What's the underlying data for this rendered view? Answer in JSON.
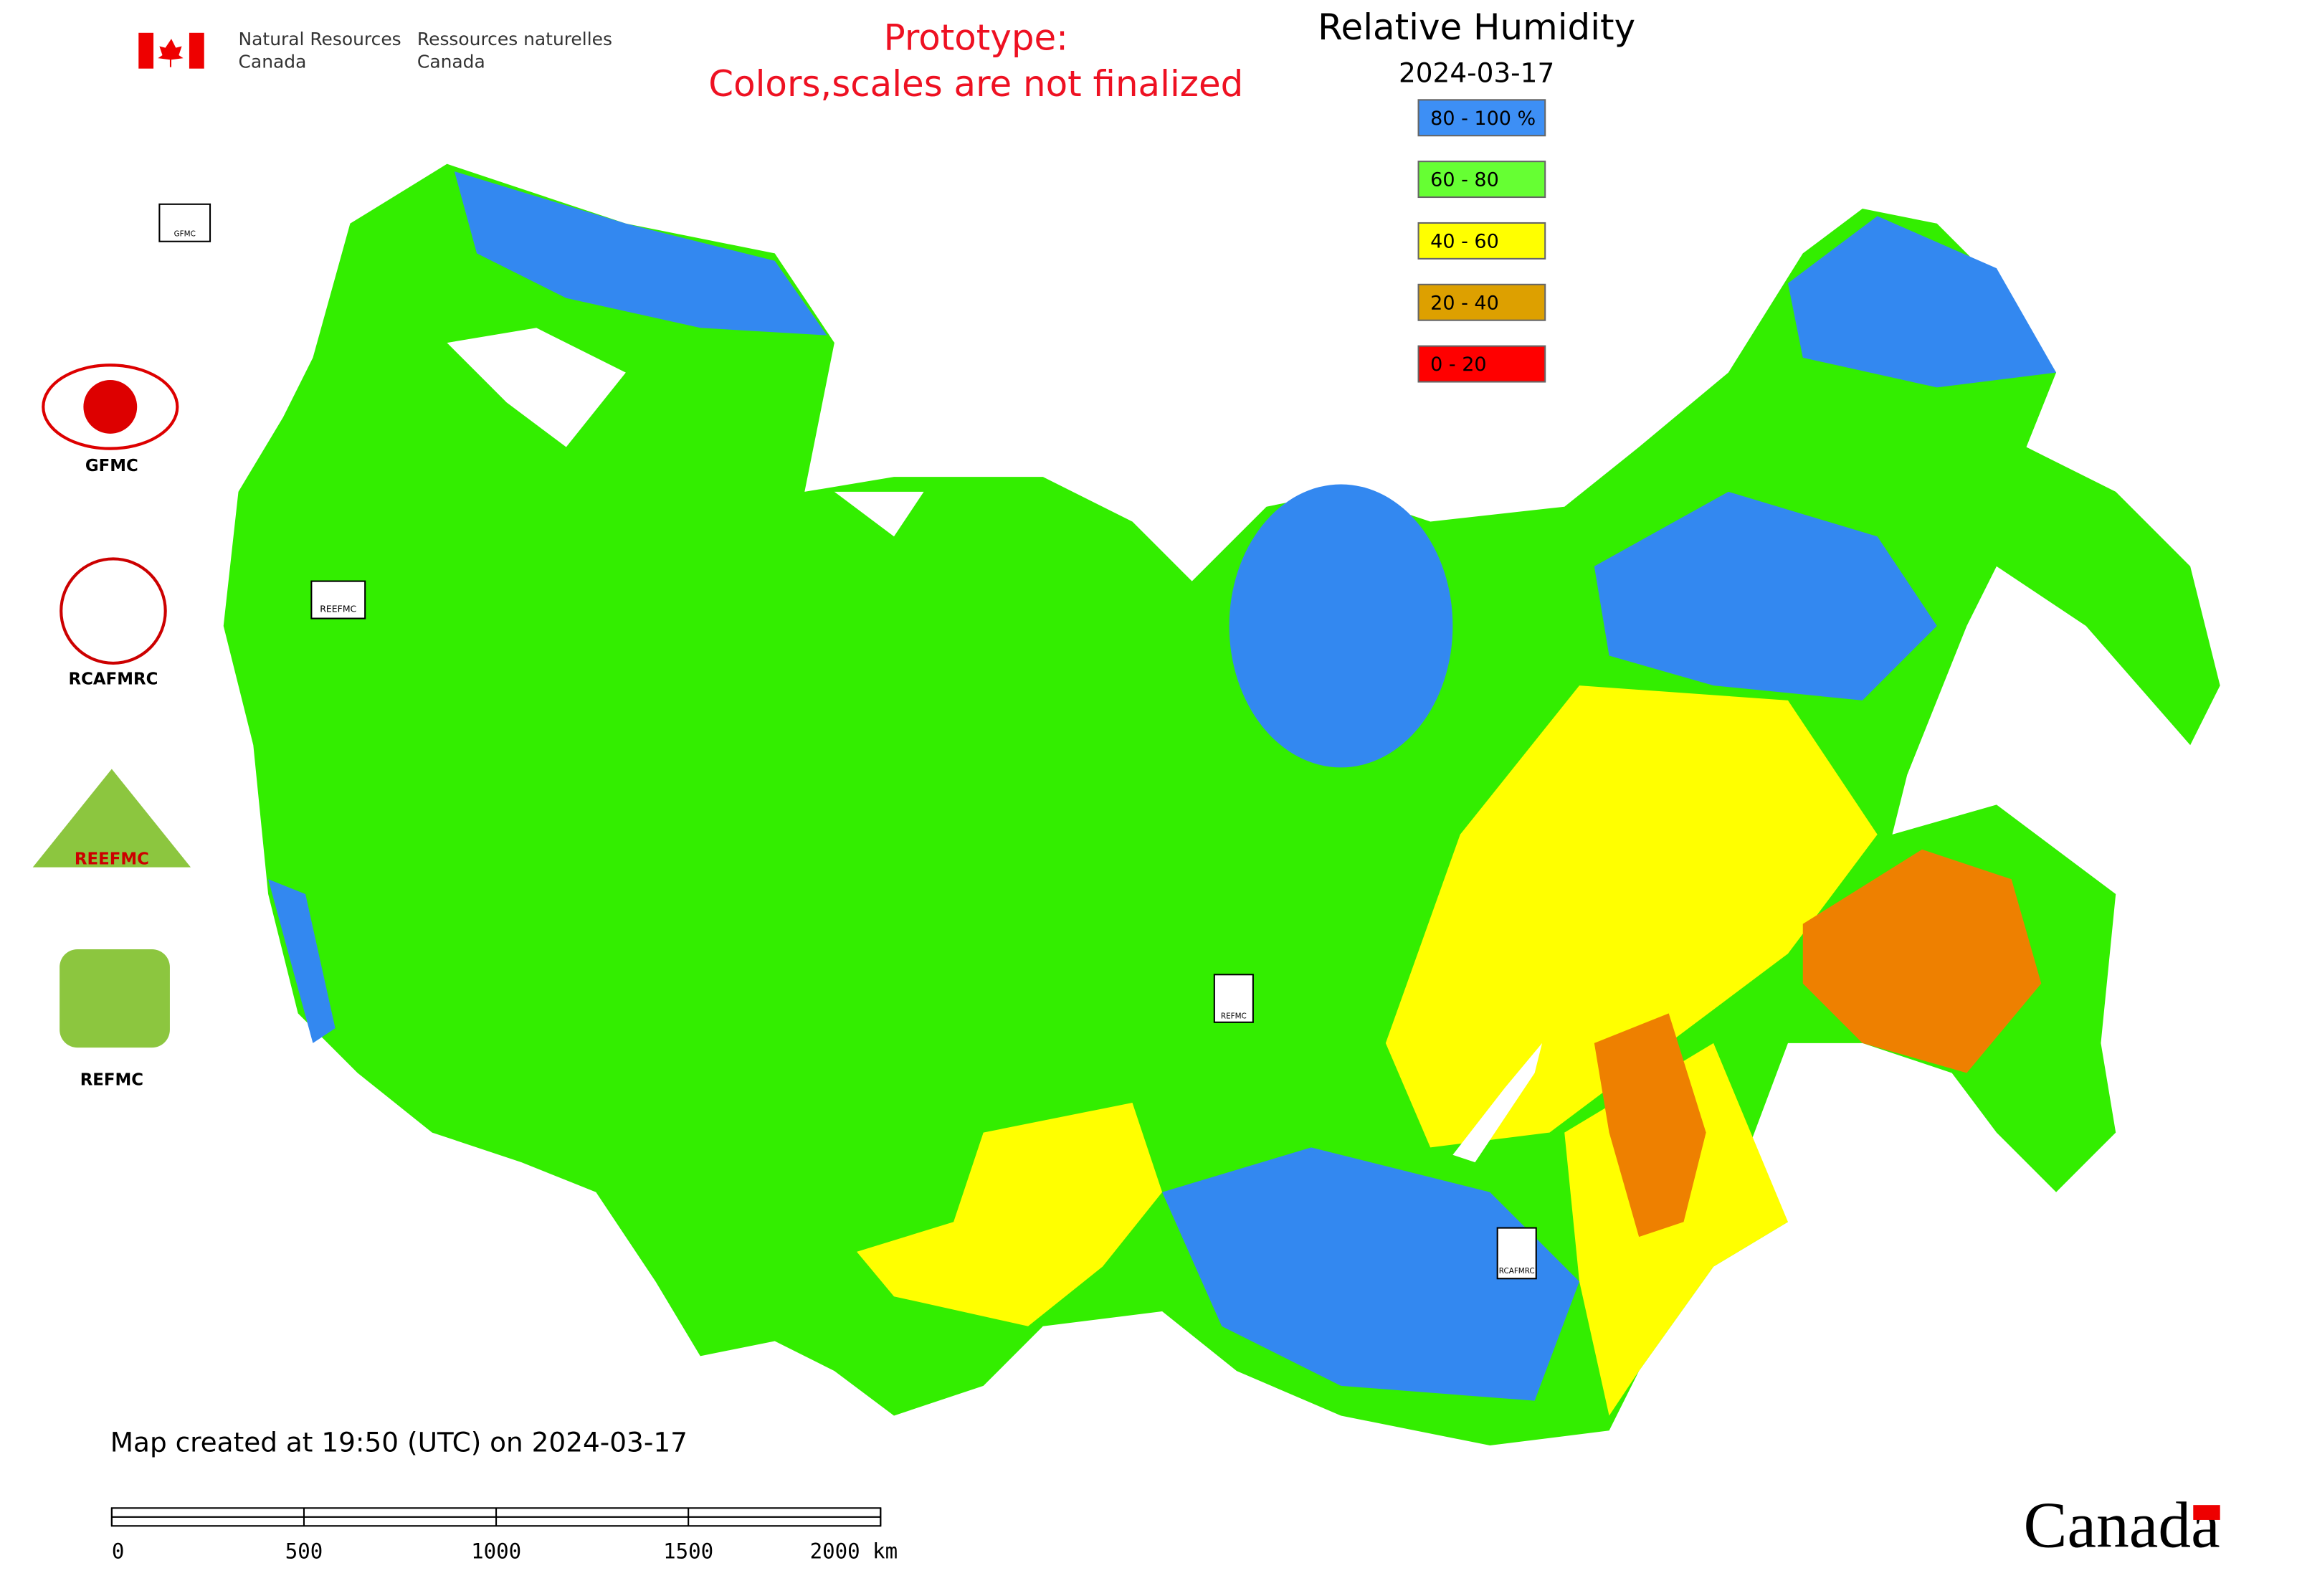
{
  "header": {
    "agency_en": [
      "Natural Resources",
      "Canada"
    ],
    "agency_fr": [
      "Ressources naturelles",
      "Canada"
    ],
    "note": [
      "Prototype:",
      "Colors,scales are not finalized"
    ]
  },
  "title": "Relative Humidity",
  "date": "2024-03-17",
  "legend": [
    {
      "label": "80 - 100 %",
      "color": "#3d8ff5"
    },
    {
      "label": "60 - 80",
      "color": "#66ff33"
    },
    {
      "label": "40 - 60",
      "color": "#ffff00"
    },
    {
      "label": "20 - 40",
      "color": "#dda000"
    },
    {
      "label": "0 - 20",
      "color": "#ff0000"
    }
  ],
  "logos": [
    "GFMC",
    "RCAFMRC",
    "REEFMC",
    "REFMC"
  ],
  "map_markers": [
    "GFMC",
    "REEFMC",
    "REFMC",
    "RCAFMRC"
  ],
  "footer": "Map created at 19:50 (UTC) on 2024-03-17",
  "scale_bar": [
    "0",
    "500",
    "1000",
    "1500",
    "2000 km"
  ],
  "wordmark": "Canada"
}
